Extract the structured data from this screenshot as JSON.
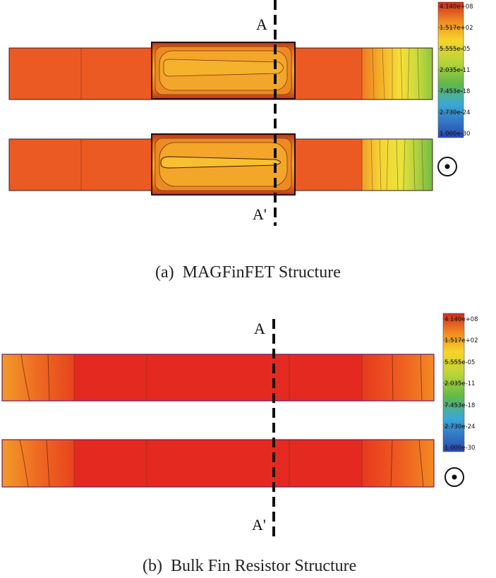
{
  "panel_a": {
    "caption": "(a)  MAGFinFET Structure",
    "cut_label_top": "A",
    "cut_label_bottom": "A'",
    "colorbar_ticks": [
      "4.140e+08",
      "1.517e+02",
      "5.555e-05",
      "2.035e-11",
      "7.453e-18",
      "2.730e-24",
      "1.000e-30"
    ]
  },
  "panel_b": {
    "caption": "(b)  Bulk Fin Resistor Structure",
    "cut_label_top": "A",
    "cut_label_bottom": "A'",
    "colorbar_ticks": [
      "4.140e+08",
      "1.517e+02",
      "5.555e-05",
      "2.035e-11",
      "7.453e-18",
      "2.730e-24",
      "1.000e-30"
    ]
  },
  "colormap": [
    "#d42a1e",
    "#f07a1e",
    "#f7d22a",
    "#7ec042",
    "#38a7d8",
    "#2a52b8"
  ],
  "magnetic_field_icon": "out-of-page-field-icon"
}
